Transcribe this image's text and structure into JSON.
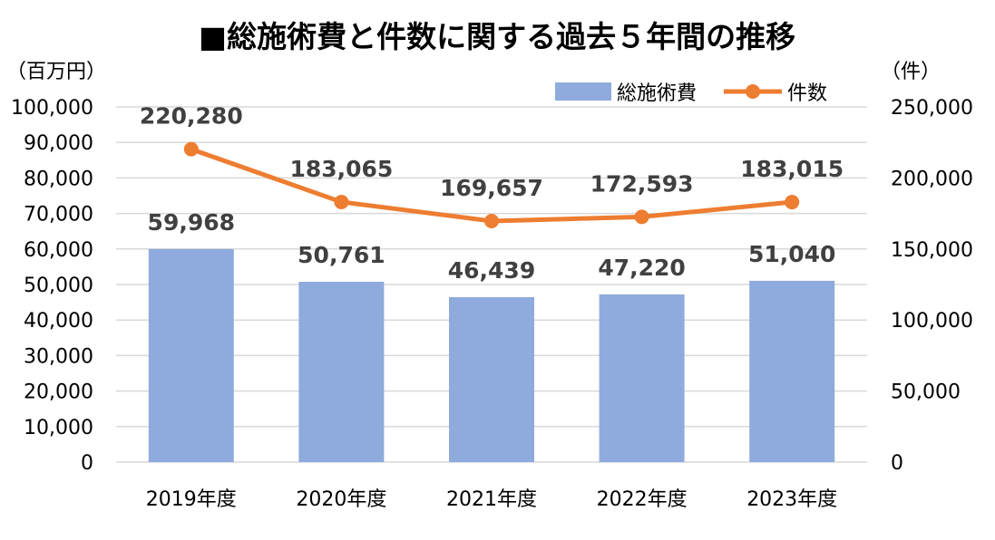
{
  "chart_data": {
    "type": "bar+line",
    "title": "■総施術費と件数に関する過去５年間の推移",
    "categories": [
      "2019年度",
      "2020年度",
      "2021年度",
      "2022年度",
      "2023年度"
    ],
    "series": [
      {
        "name": "総施術費",
        "type": "bar",
        "axis": "left",
        "values": [
          59968,
          50761,
          46439,
          47220,
          51040
        ],
        "labels": [
          "59,968",
          "50,761",
          "46,439",
          "47,220",
          "51,040"
        ]
      },
      {
        "name": "件数",
        "type": "line",
        "axis": "right",
        "values": [
          220280,
          183065,
          169657,
          172593,
          183015
        ],
        "labels": [
          "220,280",
          "183,065",
          "169,657",
          "172,593",
          "183,015"
        ]
      }
    ],
    "left_axis": {
      "label": "（百万円）",
      "ylim": [
        0,
        100000
      ],
      "ticks": [
        "0",
        "10,000",
        "20,000",
        "30,000",
        "40,000",
        "50,000",
        "60,000",
        "70,000",
        "80,000",
        "90,000",
        "100,000"
      ]
    },
    "right_axis": {
      "label": "（件）",
      "ylim": [
        0,
        250000
      ],
      "ticks": [
        "0",
        "50,000",
        "100,000",
        "150,000",
        "200,000",
        "250,000"
      ]
    },
    "grid": true,
    "legend_position": "top-right",
    "colors": {
      "bar": "#8faadc",
      "line": "#ed7d31",
      "grid": "#d9d9d9",
      "text": "#000000",
      "label": "#404040"
    }
  }
}
